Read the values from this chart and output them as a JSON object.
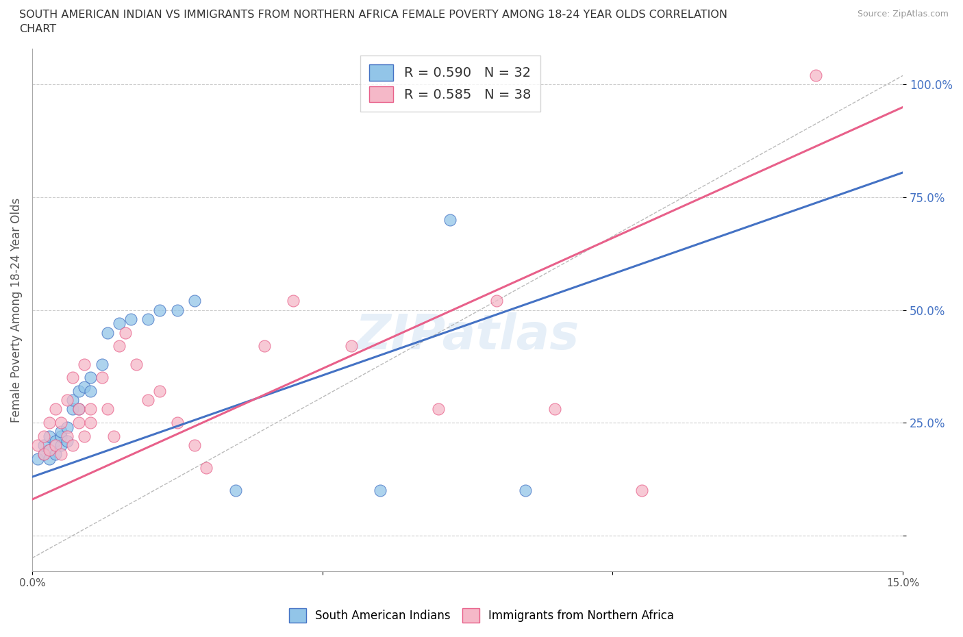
{
  "title_line1": "SOUTH AMERICAN INDIAN VS IMMIGRANTS FROM NORTHERN AFRICA FEMALE POVERTY AMONG 18-24 YEAR OLDS CORRELATION",
  "title_line2": "CHART",
  "source": "Source: ZipAtlas.com",
  "ylabel": "Female Poverty Among 18-24 Year Olds",
  "xmin": 0.0,
  "xmax": 0.15,
  "ymin": -0.08,
  "ymax": 1.08,
  "r_blue": 0.59,
  "n_blue": 32,
  "r_pink": 0.585,
  "n_pink": 38,
  "legend_label_blue": "South American Indians",
  "legend_label_pink": "Immigrants from Northern Africa",
  "color_blue": "#92C5E8",
  "color_pink": "#F5B8C8",
  "color_blue_dark": "#4472C4",
  "color_pink_dark": "#E8608A",
  "color_blue_tick": "#4472C4",
  "watermark": "ZIPatlas",
  "blue_intercept": 0.13,
  "blue_slope": 4.5,
  "pink_intercept": 0.08,
  "pink_slope": 5.8,
  "blue_scatter_x": [
    0.001,
    0.002,
    0.002,
    0.003,
    0.003,
    0.003,
    0.004,
    0.004,
    0.005,
    0.005,
    0.005,
    0.006,
    0.006,
    0.007,
    0.007,
    0.008,
    0.008,
    0.009,
    0.01,
    0.01,
    0.012,
    0.013,
    0.015,
    0.017,
    0.02,
    0.022,
    0.025,
    0.028,
    0.035,
    0.06,
    0.072,
    0.085
  ],
  "blue_scatter_y": [
    0.17,
    0.18,
    0.2,
    0.22,
    0.19,
    0.17,
    0.18,
    0.21,
    0.2,
    0.22,
    0.23,
    0.24,
    0.21,
    0.28,
    0.3,
    0.28,
    0.32,
    0.33,
    0.35,
    0.32,
    0.38,
    0.45,
    0.47,
    0.48,
    0.48,
    0.5,
    0.5,
    0.52,
    0.1,
    0.1,
    0.7,
    0.1
  ],
  "pink_scatter_x": [
    0.001,
    0.002,
    0.002,
    0.003,
    0.003,
    0.004,
    0.004,
    0.005,
    0.005,
    0.006,
    0.006,
    0.007,
    0.007,
    0.008,
    0.008,
    0.009,
    0.009,
    0.01,
    0.01,
    0.012,
    0.013,
    0.014,
    0.015,
    0.016,
    0.018,
    0.02,
    0.022,
    0.025,
    0.028,
    0.03,
    0.04,
    0.045,
    0.055,
    0.07,
    0.08,
    0.09,
    0.105,
    0.135
  ],
  "pink_scatter_y": [
    0.2,
    0.18,
    0.22,
    0.19,
    0.25,
    0.2,
    0.28,
    0.18,
    0.25,
    0.22,
    0.3,
    0.2,
    0.35,
    0.28,
    0.25,
    0.22,
    0.38,
    0.28,
    0.25,
    0.35,
    0.28,
    0.22,
    0.42,
    0.45,
    0.38,
    0.3,
    0.32,
    0.25,
    0.2,
    0.15,
    0.42,
    0.52,
    0.42,
    0.28,
    0.52,
    0.28,
    0.1,
    1.02
  ]
}
